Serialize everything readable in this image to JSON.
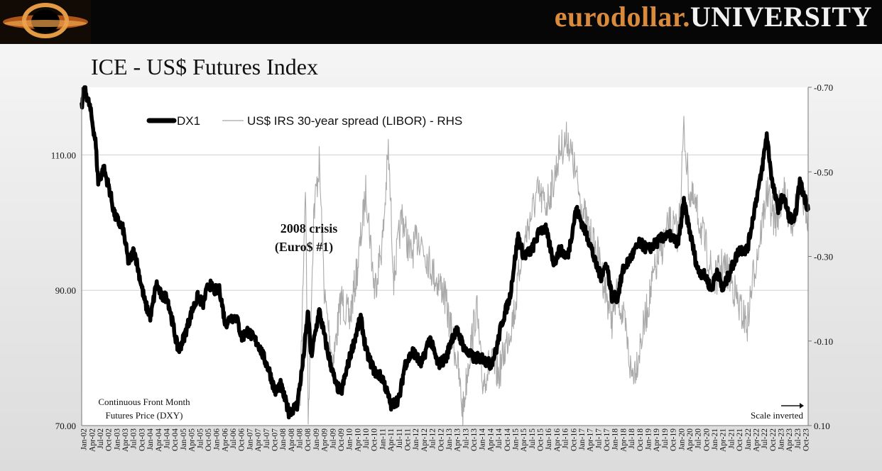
{
  "header": {
    "brand_part1": "eurodollar.",
    "brand_part2": "UNIVERSITY",
    "logo_icon": "black-hole-logo-icon"
  },
  "slide": {
    "title": "ICE - US$ Futures Index"
  },
  "colors": {
    "dx1": "#000000",
    "irs": "#a9a9a9",
    "grid": "#d0d0d0",
    "brand_orange": "#d98a3d"
  },
  "chart_data": {
    "type": "line",
    "title": "ICE - US$ Futures Index",
    "xlabel": "",
    "ylabel": "Continuous Front Month Futures Price (DXY)",
    "y2label": "",
    "ylim": [
      70,
      120
    ],
    "y2lim": [
      0.1,
      -0.7
    ],
    "y2_inverted": true,
    "grid": "horizontal",
    "legend_placement": "top-left",
    "y_ticks": [
      "70.00",
      "90.00",
      "110.00"
    ],
    "y2_ticks": [
      "-0.70",
      "-0.50",
      "-0.30",
      "-0.10",
      "0.10"
    ],
    "x_ticks": [
      "Jan-02",
      "Apr-02",
      "Jul-02",
      "Oct-02",
      "Jan-03",
      "Apr-03",
      "Jul-03",
      "Oct-03",
      "Jan-04",
      "Apr-04",
      "Jul-04",
      "Oct-04",
      "Jan-05",
      "Apr-05",
      "Jul-05",
      "Oct-05",
      "Jan-06",
      "Apr-06",
      "Jul-06",
      "Oct-06",
      "Jan-07",
      "Apr-07",
      "Jul-07",
      "Oct-07",
      "Jan-08",
      "Apr-08",
      "Jul-08",
      "Oct-08",
      "Jan-09",
      "Apr-09",
      "Jul-09",
      "Oct-09",
      "Jan-10",
      "Apr-10",
      "Jul-10",
      "Oct-10",
      "Jan-11",
      "Apr-11",
      "Jul-11",
      "Oct-11",
      "Jan-12",
      "Apr-12",
      "Jul-12",
      "Oct-12",
      "Jan-13",
      "Apr-13",
      "Jul-13",
      "Oct-13",
      "Jan-14",
      "Apr-14",
      "Jul-14",
      "Oct-14",
      "Jan-15",
      "Apr-15",
      "Jul-15",
      "Oct-15",
      "Jan-16",
      "Apr-16",
      "Jul-16",
      "Oct-16",
      "Jan-17",
      "Apr-17",
      "Jul-17",
      "Oct-17",
      "Jan-18",
      "Apr-18",
      "Jul-18",
      "Oct-18",
      "Jan-19",
      "Apr-19",
      "Jul-19",
      "Oct-19",
      "Jan-20",
      "Apr-20",
      "Jul-20",
      "Oct-20",
      "Jan-21",
      "Apr-21",
      "Jul-21",
      "Oct-21",
      "Jan-22",
      "Apr-22",
      "Jul-22",
      "Oct-22",
      "Jan-23",
      "Apr-23",
      "Jul-23",
      "Oct-23"
    ],
    "x_range": [
      "2002-01",
      "2023-12"
    ],
    "annotations": [
      {
        "name": "crisis-annotation",
        "text_line1": "2008 crisis",
        "text_line2": "(Euro$ #1)",
        "at": [
          "2009-03",
          98
        ]
      }
    ],
    "scale_note": "Scale inverted",
    "series": [
      {
        "name": "DX1",
        "axis": "left",
        "points": [
          [
            "2002-01",
            117
          ],
          [
            "2002-02",
            120
          ],
          [
            "2002-04",
            117
          ],
          [
            "2002-06",
            112
          ],
          [
            "2002-07",
            106
          ],
          [
            "2002-09",
            108
          ],
          [
            "2002-11",
            105
          ],
          [
            "2003-01",
            101
          ],
          [
            "2003-04",
            99
          ],
          [
            "2003-06",
            94
          ],
          [
            "2003-08",
            96
          ],
          [
            "2003-10",
            92
          ],
          [
            "2003-12",
            88
          ],
          [
            "2004-02",
            86
          ],
          [
            "2004-04",
            91
          ],
          [
            "2004-06",
            89
          ],
          [
            "2004-08",
            89
          ],
          [
            "2004-10",
            85
          ],
          [
            "2004-12",
            81
          ],
          [
            "2005-02",
            83
          ],
          [
            "2005-05",
            87
          ],
          [
            "2005-07",
            89
          ],
          [
            "2005-09",
            88
          ],
          [
            "2005-11",
            91
          ],
          [
            "2006-01",
            90
          ],
          [
            "2006-03",
            90
          ],
          [
            "2006-05",
            85
          ],
          [
            "2006-07",
            86
          ],
          [
            "2006-09",
            86
          ],
          [
            "2006-11",
            83
          ],
          [
            "2007-01",
            84
          ],
          [
            "2007-03",
            83
          ],
          [
            "2007-05",
            82
          ],
          [
            "2007-07",
            80
          ],
          [
            "2007-09",
            78
          ],
          [
            "2007-11",
            75
          ],
          [
            "2008-01",
            76
          ],
          [
            "2008-04",
            72
          ],
          [
            "2008-07",
            73
          ],
          [
            "2008-09",
            79
          ],
          [
            "2008-11",
            87
          ],
          [
            "2008-12",
            80
          ],
          [
            "2009-03",
            87
          ],
          [
            "2009-06",
            81
          ],
          [
            "2009-09",
            76
          ],
          [
            "2009-11",
            75
          ],
          [
            "2010-02",
            80
          ],
          [
            "2010-06",
            86
          ],
          [
            "2010-08",
            81
          ],
          [
            "2010-11",
            78
          ],
          [
            "2011-02",
            77
          ],
          [
            "2011-05",
            73
          ],
          [
            "2011-08",
            74
          ],
          [
            "2011-10",
            79
          ],
          [
            "2012-01",
            81
          ],
          [
            "2012-04",
            79
          ],
          [
            "2012-07",
            83
          ],
          [
            "2012-10",
            79
          ],
          [
            "2013-01",
            80
          ],
          [
            "2013-03",
            83
          ],
          [
            "2013-05",
            84
          ],
          [
            "2013-08",
            81
          ],
          [
            "2013-11",
            80
          ],
          [
            "2014-02",
            80
          ],
          [
            "2014-05",
            79
          ],
          [
            "2014-07",
            81
          ],
          [
            "2014-09",
            85
          ],
          [
            "2014-12",
            89
          ],
          [
            "2015-03",
            98
          ],
          [
            "2015-05",
            95
          ],
          [
            "2015-08",
            96
          ],
          [
            "2015-11",
            99
          ],
          [
            "2016-01",
            99
          ],
          [
            "2016-04",
            94
          ],
          [
            "2016-06",
            96
          ],
          [
            "2016-09",
            95
          ],
          [
            "2016-12",
            102
          ],
          [
            "2017-02",
            100
          ],
          [
            "2017-05",
            97
          ],
          [
            "2017-07",
            94
          ],
          [
            "2017-09",
            92
          ],
          [
            "2017-11",
            94
          ],
          [
            "2018-01",
            89
          ],
          [
            "2018-03",
            89
          ],
          [
            "2018-05",
            93
          ],
          [
            "2018-08",
            95
          ],
          [
            "2018-11",
            97
          ],
          [
            "2019-02",
            96
          ],
          [
            "2019-05",
            97
          ],
          [
            "2019-08",
            98
          ],
          [
            "2019-10",
            98
          ],
          [
            "2020-01",
            97
          ],
          [
            "2020-03",
            103
          ],
          [
            "2020-05",
            99
          ],
          [
            "2020-08",
            93
          ],
          [
            "2020-11",
            92
          ],
          [
            "2021-01",
            90
          ],
          [
            "2021-03",
            93
          ],
          [
            "2021-05",
            90
          ],
          [
            "2021-08",
            93
          ],
          [
            "2021-11",
            96
          ],
          [
            "2022-02",
            96
          ],
          [
            "2022-05",
            103
          ],
          [
            "2022-07",
            107
          ],
          [
            "2022-09",
            113
          ],
          [
            "2022-11",
            106
          ],
          [
            "2023-01",
            102
          ],
          [
            "2023-03",
            104
          ],
          [
            "2023-05",
            101
          ],
          [
            "2023-07",
            100
          ],
          [
            "2023-09",
            106
          ],
          [
            "2023-12",
            102
          ]
        ]
      },
      {
        "name": "US$ IRS 30-year spread (LIBOR) - RHS",
        "axis": "right",
        "points": [
          [
            "2008-08",
            0.06
          ],
          [
            "2008-10",
            -0.48
          ],
          [
            "2008-11",
            0.08
          ],
          [
            "2009-01",
            -0.4
          ],
          [
            "2009-03",
            -0.52
          ],
          [
            "2009-05",
            -0.2
          ],
          [
            "2009-08",
            -0.05
          ],
          [
            "2009-11",
            -0.2
          ],
          [
            "2010-02",
            -0.15
          ],
          [
            "2010-05",
            -0.28
          ],
          [
            "2010-08",
            -0.46
          ],
          [
            "2010-11",
            -0.22
          ],
          [
            "2011-02",
            -0.34
          ],
          [
            "2011-04",
            -0.55
          ],
          [
            "2011-06",
            -0.25
          ],
          [
            "2011-09",
            -0.4
          ],
          [
            "2011-12",
            -0.3
          ],
          [
            "2012-03",
            -0.35
          ],
          [
            "2012-06",
            -0.3
          ],
          [
            "2012-09",
            -0.25
          ],
          [
            "2012-12",
            -0.22
          ],
          [
            "2013-02",
            -0.15
          ],
          [
            "2013-05",
            -0.05
          ],
          [
            "2013-07",
            0.07
          ],
          [
            "2013-09",
            -0.05
          ],
          [
            "2013-12",
            -0.18
          ],
          [
            "2014-02",
            0.0
          ],
          [
            "2014-05",
            -0.05
          ],
          [
            "2014-08",
            -0.02
          ],
          [
            "2014-11",
            -0.1
          ],
          [
            "2015-02",
            -0.18
          ],
          [
            "2015-04",
            -0.3
          ],
          [
            "2015-07",
            -0.38
          ],
          [
            "2015-10",
            -0.45
          ],
          [
            "2016-01",
            -0.42
          ],
          [
            "2016-04",
            -0.48
          ],
          [
            "2016-06",
            -0.55
          ],
          [
            "2016-09",
            -0.58
          ],
          [
            "2016-11",
            -0.52
          ],
          [
            "2017-02",
            -0.42
          ],
          [
            "2017-05",
            -0.35
          ],
          [
            "2017-08",
            -0.3
          ],
          [
            "2017-10",
            -0.24
          ],
          [
            "2018-01",
            -0.15
          ],
          [
            "2018-03",
            -0.22
          ],
          [
            "2018-06",
            -0.12
          ],
          [
            "2018-08",
            -0.02
          ],
          [
            "2018-10",
            -0.05
          ],
          [
            "2019-01",
            -0.15
          ],
          [
            "2019-04",
            -0.25
          ],
          [
            "2019-07",
            -0.32
          ],
          [
            "2019-10",
            -0.38
          ],
          [
            "2020-01",
            -0.35
          ],
          [
            "2020-03",
            -0.6
          ],
          [
            "2020-05",
            -0.45
          ],
          [
            "2020-08",
            -0.4
          ],
          [
            "2020-11",
            -0.32
          ],
          [
            "2021-02",
            -0.24
          ],
          [
            "2021-05",
            -0.28
          ],
          [
            "2021-08",
            -0.25
          ],
          [
            "2021-11",
            -0.18
          ],
          [
            "2022-02",
            -0.14
          ],
          [
            "2022-04",
            -0.25
          ],
          [
            "2022-06",
            -0.32
          ],
          [
            "2022-09",
            -0.45
          ],
          [
            "2022-12",
            -0.38
          ],
          [
            "2023-03",
            -0.45
          ],
          [
            "2023-06",
            -0.38
          ],
          [
            "2023-09",
            -0.45
          ],
          [
            "2023-12",
            -0.4
          ]
        ]
      }
    ]
  }
}
